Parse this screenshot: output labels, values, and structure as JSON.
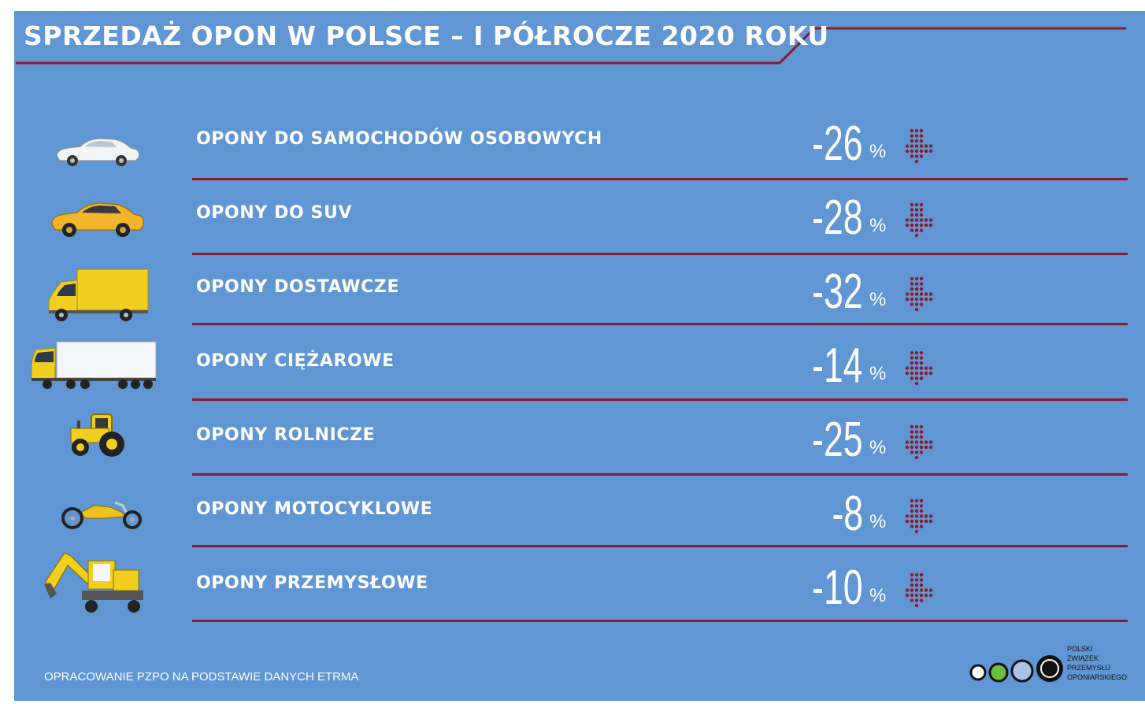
{
  "header": {
    "title": "SPRZEDAŻ OPON W POLSCE – I PÓŁROCZE 2020 ROKU"
  },
  "colors": {
    "background": "#5f96d3",
    "rule": "#8b1a2b",
    "arrow": "#8b1a2b",
    "text": "#ffffff"
  },
  "chart_data": {
    "type": "table",
    "title": "SPRZEDAŻ OPON W POLSCE – I PÓŁROCZE 2020 ROKU",
    "unit": "%",
    "trend": "down-arrow",
    "rows": [
      {
        "icon": "passenger-car-icon",
        "label": "OPONY DO SAMOCHODÓW OSOBOWYCH",
        "value": "-26",
        "unit": "%"
      },
      {
        "icon": "suv-icon",
        "label": "OPONY DO SUV",
        "value": "-28",
        "unit": "%"
      },
      {
        "icon": "delivery-van-icon",
        "label": "OPONY DOSTAWCZE",
        "value": "-32",
        "unit": "%"
      },
      {
        "icon": "truck-icon",
        "label": "OPONY CIĘŻAROWE",
        "value": "-14",
        "unit": "%"
      },
      {
        "icon": "tractor-icon",
        "label": "OPONY ROLNICZE",
        "value": "-25",
        "unit": "%"
      },
      {
        "icon": "motorcycle-icon",
        "label": "OPONY MOTOCYKLOWE",
        "value": "-8",
        "unit": "%"
      },
      {
        "icon": "excavator-icon",
        "label": "OPONY PRZEMYSŁOWE",
        "value": "-10",
        "unit": "%"
      }
    ]
  },
  "footer": {
    "source": "OPRACOWANIE PZPO NA PODSTAWIE DANYCH ETRMA",
    "logo_icon": "pzpo-logo-icon",
    "logo_lines": [
      "POLSKI",
      "ZWIĄZEK",
      "PRZEMYSŁU",
      "OPONIARSKIEGO"
    ]
  }
}
